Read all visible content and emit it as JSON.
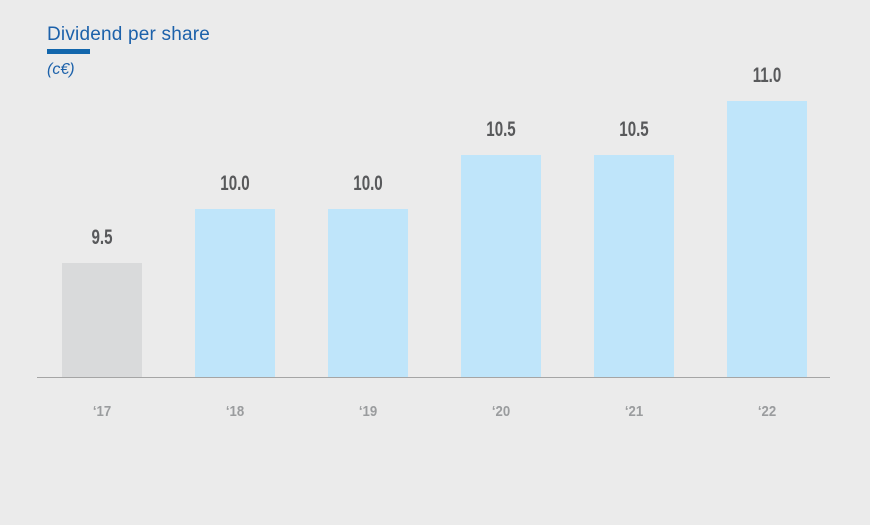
{
  "header": {
    "title": "Dividend per share",
    "subtitle": "(c€)"
  },
  "colors": {
    "background": "#ebebeb",
    "title_text": "#1c61aa",
    "title_underline": "#1266ac",
    "subtitle_text": "#1c61aa",
    "bar_default": "#bfe5fa",
    "bar_muted": "#d9dadb",
    "value_label": "#58595b",
    "tick_label": "#9a9c9e",
    "axis_line": "#a5a5a5"
  },
  "chart_data": {
    "type": "bar",
    "title": "Dividend per share",
    "unit": "c€",
    "categories": [
      "‘17",
      "‘18",
      "‘19",
      "‘20",
      "‘21",
      "‘22"
    ],
    "values": [
      9.5,
      10.0,
      10.0,
      10.5,
      10.5,
      11.0
    ],
    "value_labels": [
      "9.5",
      "10.0",
      "10.0",
      "10.5",
      "10.5",
      "11.0"
    ],
    "bar_color_keys": [
      "bar_muted",
      "bar_default",
      "bar_default",
      "bar_default",
      "bar_default",
      "bar_default"
    ],
    "xlabel": "",
    "ylabel": "",
    "grid": false,
    "legend": false,
    "y_axis_visible": false,
    "baseline_value": 8.44
  }
}
